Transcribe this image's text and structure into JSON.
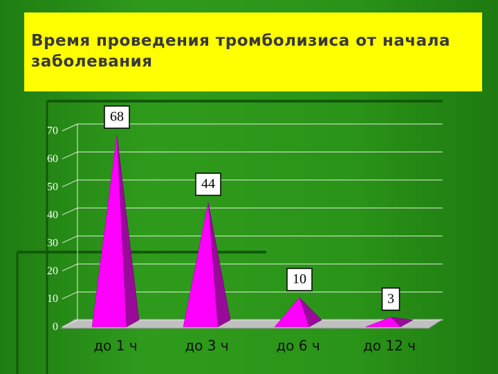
{
  "chart_data": {
    "type": "pyramid",
    "title": "Время проведения тромболизиса от начала заболевания",
    "categories": [
      "до 1 ч",
      "до 3 ч",
      "до 6 ч",
      "до 12 ч"
    ],
    "values": [
      68,
      44,
      10,
      3
    ],
    "color": "#ff00ff",
    "ylim": [
      0,
      70
    ],
    "yticks": [
      0,
      10,
      20,
      30,
      40,
      50,
      60,
      70
    ],
    "grid": true
  }
}
